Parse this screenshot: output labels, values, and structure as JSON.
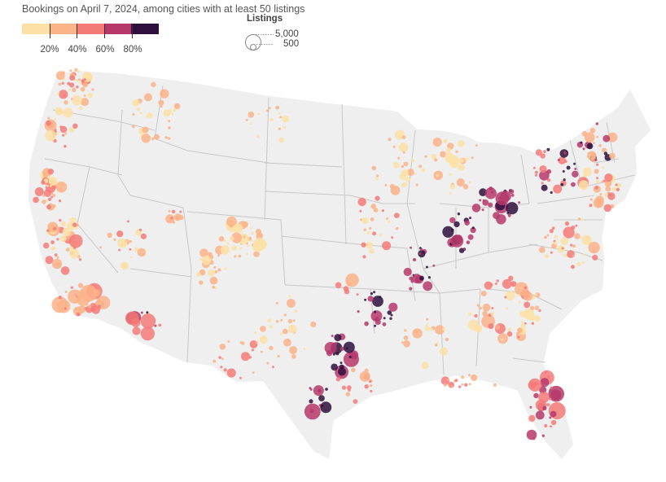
{
  "subtitle": "Bookings on April 7, 2024, among cities with at least 50 listings",
  "color_legend": {
    "ticks": [
      "20%",
      "40%",
      "60%",
      "80%"
    ],
    "colors": [
      "#fde0a6",
      "#fbb388",
      "#f47a78",
      "#b6386b",
      "#2e0f3d"
    ]
  },
  "size_legend": {
    "title": "Listings",
    "values": [
      "5,000",
      "500"
    ]
  },
  "map": {
    "land_color": "#efefef",
    "border_color": "#ffffff",
    "state_line_color": "#c8c8c8"
  }
}
